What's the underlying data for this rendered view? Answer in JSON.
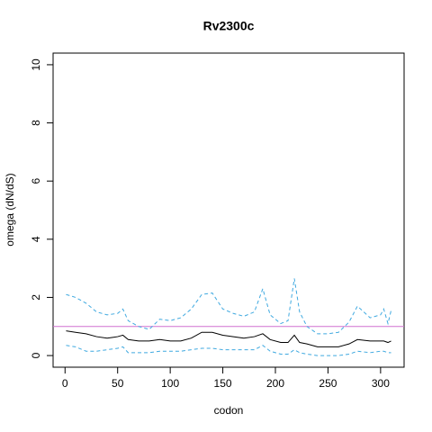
{
  "chart_data": {
    "type": "line",
    "title": "Rv2300c",
    "x_label": "codon",
    "y_label": "omega (dN/dS)",
    "x": [
      1,
      10,
      20,
      30,
      40,
      50,
      55,
      60,
      70,
      80,
      90,
      100,
      110,
      120,
      130,
      140,
      150,
      160,
      170,
      180,
      188,
      195,
      205,
      212,
      218,
      223,
      230,
      240,
      250,
      260,
      270,
      278,
      290,
      300,
      303,
      307,
      310
    ],
    "series": [
      {
        "color": "#000000",
        "dash": false,
        "values": [
          0.85,
          0.8,
          0.75,
          0.65,
          0.6,
          0.65,
          0.7,
          0.55,
          0.5,
          0.5,
          0.55,
          0.5,
          0.5,
          0.6,
          0.8,
          0.8,
          0.7,
          0.65,
          0.6,
          0.65,
          0.75,
          0.55,
          0.45,
          0.45,
          0.7,
          0.45,
          0.4,
          0.3,
          0.3,
          0.3,
          0.4,
          0.55,
          0.5,
          0.5,
          0.5,
          0.45,
          0.5
        ]
      },
      {
        "color": "#3fa9e0",
        "dash": true,
        "values": [
          2.1,
          2.0,
          1.8,
          1.5,
          1.4,
          1.45,
          1.6,
          1.2,
          1.0,
          0.9,
          1.25,
          1.2,
          1.3,
          1.6,
          2.1,
          2.15,
          1.6,
          1.45,
          1.35,
          1.5,
          2.3,
          1.4,
          1.1,
          1.2,
          2.65,
          1.5,
          1.0,
          0.75,
          0.75,
          0.8,
          1.15,
          1.7,
          1.3,
          1.4,
          1.6,
          1.1,
          1.55
        ]
      },
      {
        "color": "#3fa9e0",
        "dash": true,
        "values": [
          0.35,
          0.3,
          0.15,
          0.15,
          0.2,
          0.25,
          0.3,
          0.1,
          0.1,
          0.1,
          0.15,
          0.15,
          0.15,
          0.2,
          0.25,
          0.25,
          0.2,
          0.2,
          0.2,
          0.2,
          0.35,
          0.15,
          0.05,
          0.05,
          0.2,
          0.1,
          0.05,
          0.0,
          0.0,
          0.0,
          0.05,
          0.15,
          0.1,
          0.15,
          0.15,
          0.1,
          0.1
        ]
      }
    ],
    "hline": {
      "value": 1,
      "color": "#d070d0"
    },
    "xlim": [
      -11.36,
      322.36
    ],
    "ylim": [
      -0.4,
      10.4
    ],
    "xticks": [
      0,
      50,
      100,
      150,
      200,
      250,
      300
    ],
    "yticks": [
      0,
      2,
      4,
      6,
      8,
      10
    ]
  }
}
